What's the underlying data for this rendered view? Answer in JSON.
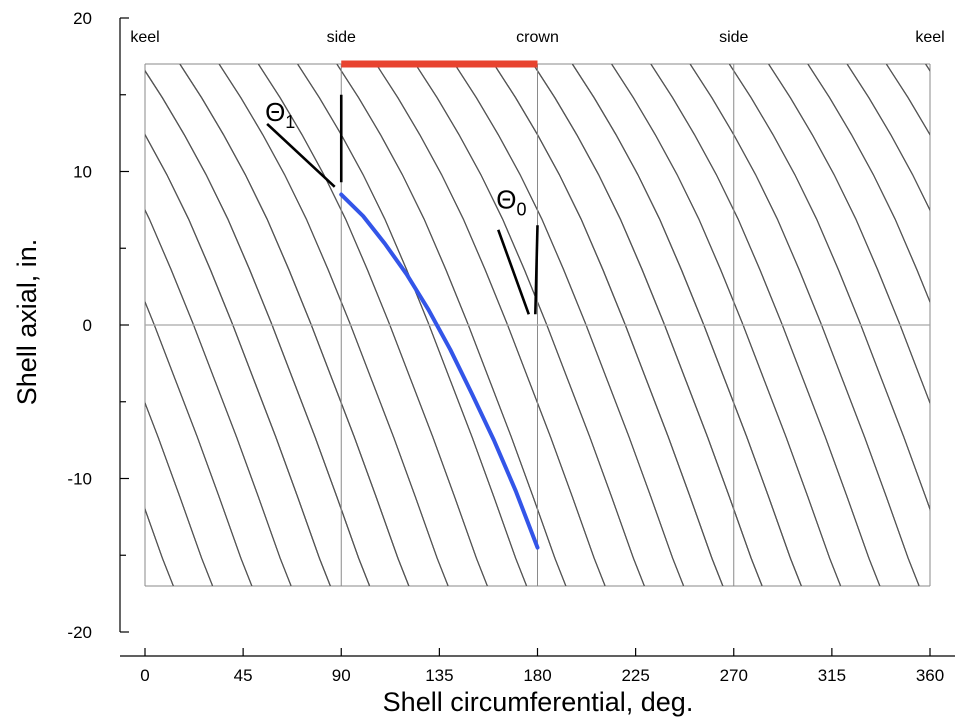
{
  "chart_data": {
    "type": "line",
    "title": "",
    "xlabel": "Shell circumferential, deg.",
    "ylabel": "Shell axial, in.",
    "xlim": [
      0,
      360
    ],
    "ylim": [
      -20,
      20
    ],
    "xticks": [
      "0",
      "45",
      "90",
      "135",
      "180",
      "225",
      "270",
      "315",
      "360"
    ],
    "yticks": [
      "-20",
      "-10",
      "0",
      "10",
      "20"
    ],
    "x_minor_step": 45,
    "y_minor_step": 5,
    "grid": true,
    "shell_region": {
      "x": [
        0,
        360
      ],
      "y": [
        -17,
        17
      ]
    },
    "vertical_gridlines": [
      90,
      180,
      270
    ],
    "horizontal_gridlines": [
      0
    ],
    "position_labels": [
      {
        "x": 0,
        "text": "keel"
      },
      {
        "x": 90,
        "text": "side"
      },
      {
        "x": 180,
        "text": "crown"
      },
      {
        "x": 270,
        "text": "side"
      },
      {
        "x": 360,
        "text": "keel"
      }
    ],
    "family_curves": {
      "description_color": "#555555",
      "start_x": [
        -200,
        -182,
        -164,
        -146,
        -128,
        -110,
        -92,
        -74,
        -56,
        -38,
        -20,
        -2,
        16,
        34,
        52,
        70,
        88,
        106,
        124,
        142,
        160,
        178,
        196,
        214,
        232,
        250,
        268,
        286,
        304,
        322,
        340,
        358,
        376
      ],
      "period_deg": 180,
      "shape": [
        [
          0,
          17
        ],
        [
          10,
          14.8
        ],
        [
          20,
          12.4
        ],
        [
          30,
          9.8
        ],
        [
          40,
          6.9
        ],
        [
          50,
          3.6
        ],
        [
          60,
          0.1
        ],
        [
          70,
          -3.6
        ],
        [
          80,
          -7.3
        ],
        [
          90,
          -11.2
        ],
        [
          100,
          -15.2
        ],
        [
          105,
          -17
        ]
      ]
    },
    "series": [
      {
        "name": "",
        "color": "#3355e8",
        "x": [
          90,
          100,
          110,
          120,
          130,
          140,
          150,
          160,
          170,
          180
        ],
        "y": [
          8.5,
          7.1,
          5.3,
          3.3,
          1.0,
          -1.6,
          -4.5,
          -7.5,
          -10.8,
          -14.5
        ]
      }
    ],
    "highlight_bar": {
      "x": [
        90,
        180
      ],
      "y": 17,
      "color": "#e8432f"
    },
    "annotations": [
      {
        "label": "Θ",
        "sub": "1",
        "label_at": [
          62,
          13.3
        ],
        "lines": [
          {
            "from": [
              90,
              15
            ],
            "to": [
              90,
              9.3
            ]
          },
          {
            "from": [
              56,
              13.1
            ],
            "to": [
              87,
              9.0
            ]
          }
        ]
      },
      {
        "label": "Θ",
        "sub": "0",
        "label_at": [
          168,
          7.6
        ],
        "lines": [
          {
            "from": [
              180,
              6.5
            ],
            "to": [
              179,
              0.7
            ]
          },
          {
            "from": [
              162,
              6.2
            ],
            "to": [
              176,
              0.7
            ]
          }
        ]
      }
    ]
  }
}
